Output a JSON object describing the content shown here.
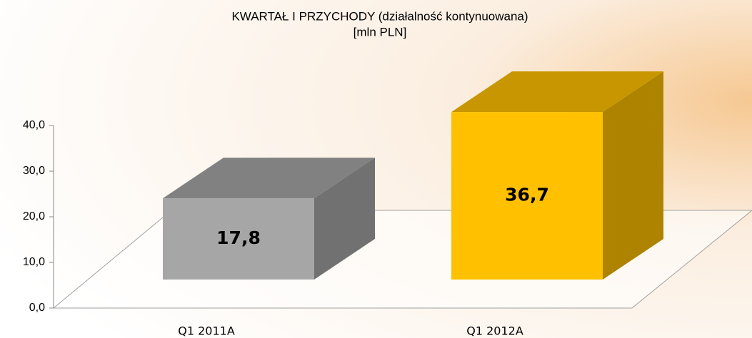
{
  "chart_data": {
    "type": "bar3d",
    "title": "KWARTAŁ I PRZYCHODY (działalność kontynuowana)",
    "subtitle": "[mln PLN]",
    "categories": [
      "Q1 2011A",
      "Q1 2012A"
    ],
    "values": [
      17.8,
      36.7
    ],
    "value_labels": [
      "17,8",
      "36,7"
    ],
    "colors": [
      "#a6a6a6",
      "#ffc000"
    ],
    "ylim": [
      0,
      40
    ],
    "yticks": [
      {
        "value": 0,
        "label": "0,0"
      },
      {
        "value": 10,
        "label": "10,0"
      },
      {
        "value": 20,
        "label": "20,0"
      },
      {
        "value": 30,
        "label": "30,0"
      },
      {
        "value": 40,
        "label": "40,0"
      }
    ]
  }
}
